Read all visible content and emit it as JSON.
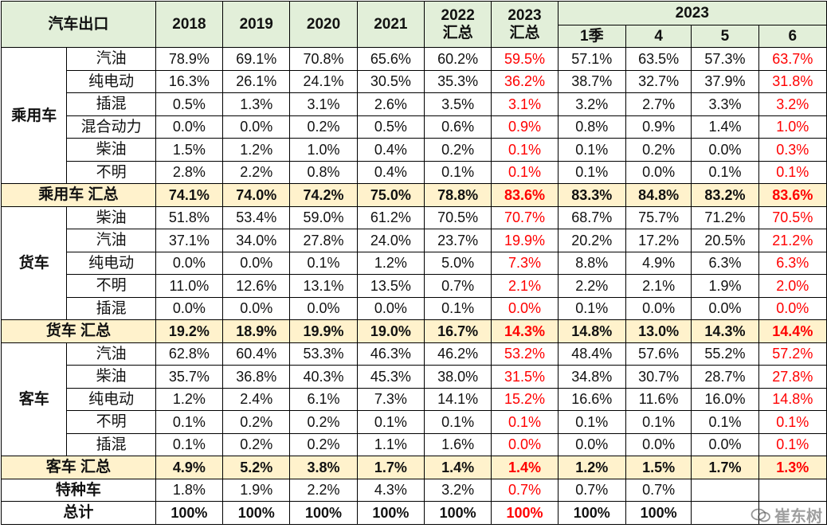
{
  "header": {
    "corner": "汽车出口",
    "years": [
      "2018",
      "2019",
      "2020",
      "2021"
    ],
    "y2022": [
      "2022",
      "汇总"
    ],
    "y2023": [
      "2023",
      "汇总"
    ],
    "group2023": "2023",
    "months": [
      "1季",
      "4",
      "5",
      "6"
    ]
  },
  "groups": [
    {
      "name": "乘用车",
      "rows": [
        {
          "label": "汽油",
          "values": [
            "78.9%",
            "69.1%",
            "70.8%",
            "65.6%",
            "60.2%",
            "59.5%",
            "57.1%",
            "63.5%",
            "57.3%",
            "63.7%"
          ]
        },
        {
          "label": "纯电动",
          "values": [
            "16.3%",
            "26.1%",
            "24.1%",
            "30.5%",
            "35.3%",
            "36.2%",
            "38.7%",
            "32.7%",
            "37.9%",
            "31.8%"
          ]
        },
        {
          "label": "插混",
          "values": [
            "0.5%",
            "1.3%",
            "3.1%",
            "2.6%",
            "3.5%",
            "3.1%",
            "3.2%",
            "2.7%",
            "3.3%",
            "3.2%"
          ]
        },
        {
          "label": "混合动力",
          "values": [
            "0.0%",
            "0.0%",
            "0.2%",
            "0.5%",
            "0.6%",
            "0.9%",
            "0.8%",
            "0.9%",
            "1.4%",
            "1.0%"
          ]
        },
        {
          "label": "柴油",
          "values": [
            "1.5%",
            "1.2%",
            "1.0%",
            "0.4%",
            "0.2%",
            "0.1%",
            "0.1%",
            "0.2%",
            "0.0%",
            "0.3%"
          ]
        },
        {
          "label": "不明",
          "values": [
            "2.8%",
            "2.2%",
            "0.8%",
            "0.4%",
            "0.1%",
            "0.1%",
            "0.1%",
            "0.0%",
            "0.1%",
            "0.1%"
          ]
        }
      ],
      "total": {
        "label": "乘用车 汇总",
        "values": [
          "74.1%",
          "74.0%",
          "74.2%",
          "75.0%",
          "78.8%",
          "83.6%",
          "83.3%",
          "84.8%",
          "83.2%",
          "83.6%"
        ]
      }
    },
    {
      "name": "货车",
      "rows": [
        {
          "label": "柴油",
          "values": [
            "51.8%",
            "53.4%",
            "59.0%",
            "61.2%",
            "70.5%",
            "70.7%",
            "68.7%",
            "75.7%",
            "71.2%",
            "70.5%"
          ]
        },
        {
          "label": "汽油",
          "values": [
            "37.1%",
            "34.0%",
            "27.8%",
            "24.0%",
            "23.7%",
            "19.9%",
            "20.2%",
            "17.2%",
            "20.5%",
            "21.2%"
          ]
        },
        {
          "label": "纯电动",
          "values": [
            "0.0%",
            "0.0%",
            "0.1%",
            "1.2%",
            "5.0%",
            "7.3%",
            "8.8%",
            "4.9%",
            "6.3%",
            "6.3%"
          ]
        },
        {
          "label": "不明",
          "values": [
            "11.0%",
            "12.6%",
            "13.1%",
            "13.5%",
            "0.7%",
            "2.1%",
            "2.2%",
            "2.1%",
            "1.9%",
            "2.0%"
          ]
        },
        {
          "label": "插混",
          "values": [
            "0.0%",
            "0.0%",
            "0.0%",
            "0.0%",
            "0.1%",
            "0.0%",
            "0.1%",
            "0.0%",
            "0.0%",
            "0.0%"
          ]
        }
      ],
      "total": {
        "label": "货车 汇总",
        "values": [
          "19.2%",
          "18.9%",
          "19.9%",
          "19.0%",
          "16.7%",
          "14.3%",
          "14.8%",
          "13.0%",
          "14.3%",
          "14.4%"
        ]
      }
    },
    {
      "name": "客车",
      "rows": [
        {
          "label": "汽油",
          "values": [
            "62.8%",
            "60.4%",
            "53.3%",
            "46.3%",
            "46.2%",
            "53.2%",
            "48.4%",
            "57.6%",
            "55.2%",
            "57.2%"
          ]
        },
        {
          "label": "柴油",
          "values": [
            "35.7%",
            "36.8%",
            "40.3%",
            "45.3%",
            "38.0%",
            "31.5%",
            "34.8%",
            "30.7%",
            "28.7%",
            "27.8%"
          ]
        },
        {
          "label": "纯电动",
          "values": [
            "1.2%",
            "2.4%",
            "6.1%",
            "7.3%",
            "14.1%",
            "15.2%",
            "16.6%",
            "11.6%",
            "16.0%",
            "14.8%"
          ]
        },
        {
          "label": "不明",
          "values": [
            "0.1%",
            "0.2%",
            "0.2%",
            "0.1%",
            "0.1%",
            "0.1%",
            "0.1%",
            "0.1%",
            "0.1%",
            "0.1%"
          ]
        },
        {
          "label": "插混",
          "values": [
            "0.1%",
            "0.2%",
            "0.2%",
            "1.1%",
            "1.6%",
            "0.0%",
            "0.0%",
            "0.0%",
            "0.0%",
            "0.1%"
          ]
        }
      ],
      "total": {
        "label": "客车 汇总",
        "values": [
          "4.9%",
          "5.2%",
          "3.8%",
          "1.7%",
          "1.4%",
          "1.4%",
          "1.2%",
          "1.5%",
          "1.7%",
          "1.3%"
        ]
      }
    }
  ],
  "special": {
    "label": "特种车",
    "values": [
      "1.8%",
      "1.9%",
      "2.2%",
      "4.3%",
      "3.2%",
      "0.7%",
      "0.7%",
      "0.7%",
      "",
      ""
    ]
  },
  "grand": {
    "label": "总计",
    "values": [
      "100%",
      "100%",
      "100%",
      "100%",
      "100%",
      "100%",
      "100%",
      "100%",
      "",
      ""
    ]
  },
  "highlight_columns": [
    5,
    9
  ],
  "colors": {
    "header_bg": "#e2efd9",
    "total_bg": "#fff2cc",
    "highlight": "#ff0000"
  },
  "watermark": "崔东树"
}
